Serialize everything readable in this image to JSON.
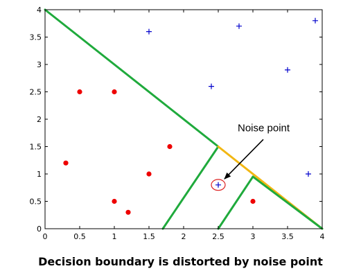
{
  "caption": "Decision boundary is distorted by noise point",
  "colors": {
    "positive": "#0000cc",
    "negative": "#ee0000",
    "boundary_green": "#1faa3c",
    "boundary_orange": "#f2b713",
    "noise_circle": "#dd2222",
    "axis": "#000000"
  },
  "chart_data": {
    "type": "scatter",
    "title": "",
    "xlabel": "",
    "ylabel": "",
    "xlim": [
      0,
      4
    ],
    "ylim": [
      0,
      4
    ],
    "grid": false,
    "x_ticks": [
      {
        "value": 0,
        "label": "0"
      },
      {
        "value": 0.5,
        "label": "0.5"
      },
      {
        "value": 1,
        "label": "1"
      },
      {
        "value": 1.5,
        "label": "1.5"
      },
      {
        "value": 2,
        "label": "2"
      },
      {
        "value": 2.5,
        "label": "2.5"
      },
      {
        "value": 3,
        "label": "3"
      },
      {
        "value": 3.5,
        "label": "3.5"
      },
      {
        "value": 4,
        "label": "4"
      }
    ],
    "y_ticks": [
      {
        "value": 0,
        "label": "0"
      },
      {
        "value": 0.5,
        "label": "0.5"
      },
      {
        "value": 1,
        "label": "1"
      },
      {
        "value": 1.5,
        "label": "1.5"
      },
      {
        "value": 2,
        "label": "2"
      },
      {
        "value": 2.5,
        "label": "2.5"
      },
      {
        "value": 3,
        "label": "3"
      },
      {
        "value": 3.5,
        "label": "3.5"
      },
      {
        "value": 4,
        "label": "4"
      }
    ],
    "series": [
      {
        "marker": "plus",
        "color": "#0000cc",
        "points": [
          [
            1.5,
            3.6
          ],
          [
            2.8,
            3.7
          ],
          [
            3.9,
            3.8
          ],
          [
            3.5,
            2.9
          ],
          [
            2.4,
            2.6
          ],
          [
            3.8,
            1.0
          ],
          [
            2.5,
            0.8
          ]
        ]
      },
      {
        "marker": "dot",
        "color": "#ee0000",
        "points": [
          [
            0.5,
            2.5
          ],
          [
            1.0,
            2.5
          ],
          [
            1.8,
            1.5
          ],
          [
            0.3,
            1.2
          ],
          [
            1.5,
            1.0
          ],
          [
            1.0,
            0.5
          ],
          [
            1.2,
            0.3
          ],
          [
            3.0,
            0.5
          ]
        ]
      }
    ],
    "boundaries": [
      {
        "color": "#1faa3c",
        "points": [
          [
            0,
            4
          ],
          [
            2.5,
            1.5
          ]
        ]
      },
      {
        "color": "#1faa3c",
        "points": [
          [
            2.5,
            1.5
          ],
          [
            1.7,
            0
          ]
        ]
      },
      {
        "color": "#f2b713",
        "points": [
          [
            2.5,
            1.5
          ],
          [
            4,
            0
          ]
        ]
      },
      {
        "color": "#1faa3c",
        "points": [
          [
            2.5,
            0
          ],
          [
            3.0,
            0.95
          ]
        ]
      },
      {
        "color": "#1faa3c",
        "points": [
          [
            3.0,
            0.95
          ],
          [
            4,
            0
          ]
        ]
      }
    ],
    "annotation": {
      "text": "Noise point",
      "label_at": [
        2.78,
        1.78
      ],
      "arrow_from": [
        3.15,
        1.63
      ],
      "arrow_to": [
        2.59,
        0.91
      ],
      "circled_point": [
        2.5,
        0.8
      ],
      "circle_radius": [
        0.1,
        0.1
      ]
    }
  }
}
